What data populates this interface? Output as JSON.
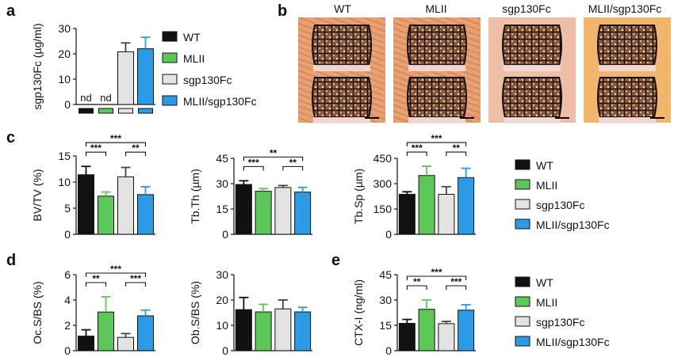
{
  "panel_labels": {
    "a": "a",
    "b": "b",
    "c": "c",
    "d": "d",
    "e": "e"
  },
  "groups": [
    "WT",
    "MLII",
    "sgp130Fc",
    "MLII/sgp130Fc"
  ],
  "colors": {
    "WT": "#111111",
    "MLII": "#5dc85a",
    "sgp130Fc": "#e3e3e3",
    "MLII/sgp130Fc": "#2b9be6"
  },
  "micrograph_headers": [
    "WT",
    "MLII",
    "sgp130Fc",
    "MLII/sgp130Fc"
  ],
  "chart_data": [
    {
      "id": "a",
      "type": "bar",
      "categories": [
        "WT",
        "MLII",
        "sgp130Fc",
        "MLII/sgp130Fc"
      ],
      "values": [
        0,
        0,
        20.8,
        22
      ],
      "errors": [
        0,
        0,
        3.5,
        4.5
      ],
      "value_labels": [
        "nd",
        "nd",
        "",
        ""
      ],
      "ylabel": "sgp130Fc (µg/ml)",
      "ylim": [
        0,
        30
      ],
      "yticks": [
        "0",
        "10",
        "20",
        "30"
      ],
      "significance": []
    },
    {
      "id": "c1",
      "type": "bar",
      "categories": [
        "WT",
        "MLII",
        "sgp130Fc",
        "MLII/sgp130Fc"
      ],
      "values": [
        11.4,
        7.3,
        11,
        7.6
      ],
      "errors": [
        1.6,
        0.8,
        1.8,
        1.5
      ],
      "ylabel": "BV/TV (%)",
      "ylim": [
        0,
        15
      ],
      "yticks": [
        "0",
        "5",
        "10",
        "15"
      ],
      "significance": [
        {
          "from": 0,
          "to": 3,
          "label": "***"
        },
        {
          "from": 0,
          "to": 1,
          "label": "***"
        },
        {
          "from": 2,
          "to": 3,
          "label": "**"
        }
      ]
    },
    {
      "id": "c2",
      "type": "bar",
      "categories": [
        "WT",
        "MLII",
        "sgp130Fc",
        "MLII/sgp130Fc"
      ],
      "values": [
        29.5,
        25.5,
        27.7,
        25
      ],
      "errors": [
        2.2,
        1.6,
        1.2,
        2.8
      ],
      "ylabel": "Tb.Th (µm)",
      "ylim": [
        0,
        45
      ],
      "yticks": [
        "0",
        "15",
        "30",
        "45"
      ],
      "significance": [
        {
          "from": 0,
          "to": 3,
          "label": "**"
        },
        {
          "from": 0,
          "to": 1,
          "label": "***"
        },
        {
          "from": 2,
          "to": 3,
          "label": "**"
        }
      ]
    },
    {
      "id": "c3",
      "type": "bar",
      "categories": [
        "WT",
        "MLII",
        "sgp130Fc",
        "MLII/sgp130Fc"
      ],
      "values": [
        237,
        348,
        237,
        336
      ],
      "errors": [
        15,
        55,
        45,
        55
      ],
      "ylabel": "Tb.Sp (µm)",
      "ylim": [
        0,
        450
      ],
      "yticks": [
        "0",
        "150",
        "300",
        "450"
      ],
      "significance": [
        {
          "from": 0,
          "to": 3,
          "label": "***"
        },
        {
          "from": 0,
          "to": 1,
          "label": "***"
        },
        {
          "from": 2,
          "to": 3,
          "label": "**"
        }
      ]
    },
    {
      "id": "d1",
      "type": "bar",
      "categories": [
        "WT",
        "MLII",
        "sgp130Fc",
        "MLII/sgp130Fc"
      ],
      "values": [
        1.15,
        3.05,
        1.05,
        2.75
      ],
      "errors": [
        0.5,
        1.2,
        0.3,
        0.45
      ],
      "ylabel": "Oc.S/BS (%)",
      "ylim": [
        0,
        6
      ],
      "yticks": [
        "0",
        "2",
        "4",
        "6"
      ],
      "significance": [
        {
          "from": 0,
          "to": 3,
          "label": "***"
        },
        {
          "from": 0,
          "to": 1,
          "label": "**"
        },
        {
          "from": 2,
          "to": 3,
          "label": "***"
        }
      ]
    },
    {
      "id": "d2",
      "type": "bar",
      "categories": [
        "WT",
        "MLII",
        "sgp130Fc",
        "MLII/sgp130Fc"
      ],
      "values": [
        16.2,
        15.3,
        16.5,
        15.3
      ],
      "errors": [
        4.8,
        3,
        3.5,
        1.8
      ],
      "ylabel": "Ob.S/BS (%)",
      "ylim": [
        0,
        30
      ],
      "yticks": [
        "0",
        "10",
        "20",
        "30"
      ],
      "significance": []
    },
    {
      "id": "e",
      "type": "bar",
      "categories": [
        "WT",
        "MLII",
        "sgp130Fc",
        "MLII/sgp130Fc"
      ],
      "values": [
        16.2,
        24.5,
        16,
        24
      ],
      "errors": [
        2.3,
        5.5,
        1.3,
        3.2
      ],
      "ylabel": "CTX-I (ng/ml)",
      "ylim": [
        0,
        45
      ],
      "yticks": [
        "0",
        "15",
        "30",
        "45"
      ],
      "significance": [
        {
          "from": 0,
          "to": 3,
          "label": "***"
        },
        {
          "from": 0,
          "to": 1,
          "label": "**"
        },
        {
          "from": 2,
          "to": 3,
          "label": "***"
        }
      ]
    }
  ]
}
